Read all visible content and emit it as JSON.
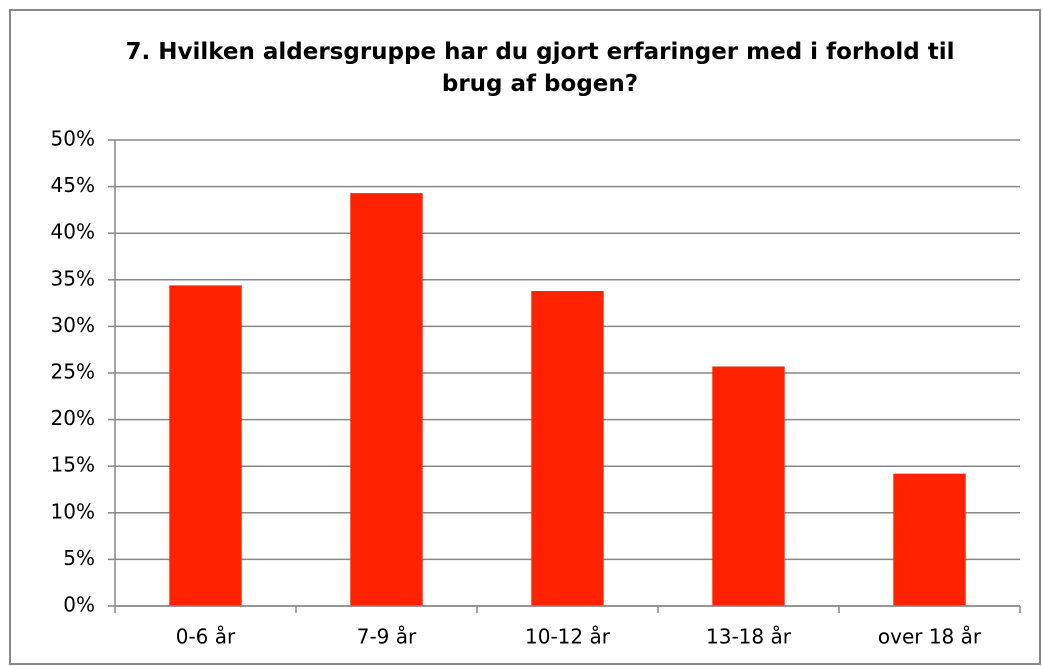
{
  "chart_data": {
    "type": "bar",
    "title": "7. Hvilken aldersgruppe har du gjort erfaringer med i forhold til brug af bogen?",
    "categories": [
      "0-6 år",
      "7-9 år",
      "10-12 år",
      "13-18 år",
      "over 18 år"
    ],
    "values": [
      34.4,
      44.3,
      33.8,
      25.7,
      14.2
    ],
    "color": "#ff2200",
    "ylim": [
      0,
      50
    ],
    "yticks": [
      {
        "value": 0,
        "label": "0%"
      },
      {
        "value": 5,
        "label": "5%"
      },
      {
        "value": 10,
        "label": "10%"
      },
      {
        "value": 15,
        "label": "15%"
      },
      {
        "value": 20,
        "label": "20%"
      },
      {
        "value": 25,
        "label": "25%"
      },
      {
        "value": 30,
        "label": "30%"
      },
      {
        "value": 35,
        "label": "35%"
      },
      {
        "value": 40,
        "label": "40%"
      },
      {
        "value": 45,
        "label": "45%"
      },
      {
        "value": 50,
        "label": "50%"
      }
    ],
    "grid": true
  }
}
